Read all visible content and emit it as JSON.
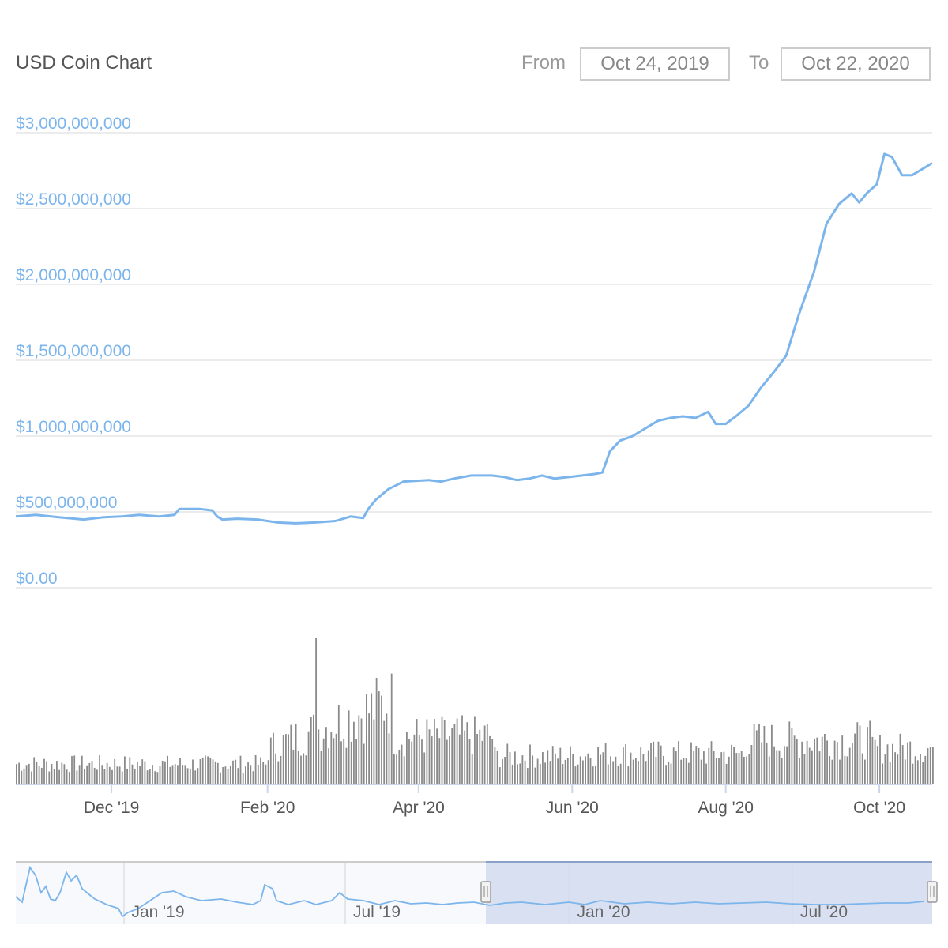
{
  "header": {
    "title": "USD Coin Chart",
    "from_label": "From",
    "from_value": "Oct 24, 2019",
    "to_label": "To",
    "to_value": "Oct 22, 2020"
  },
  "colors": {
    "line": "#7cb5ec",
    "volume": "#8a8a8a",
    "grid": "#e6e6e6",
    "navigator_mask": "#d4dcef"
  },
  "chart_data": {
    "type": "line",
    "title": "USD Coin Chart",
    "y_axis": {
      "min": 0,
      "max": 3000000000,
      "ticks": [
        0,
        500000000,
        1000000000,
        1500000000,
        2000000000,
        2500000000,
        3000000000
      ],
      "tick_labels": [
        "$0.00",
        "$500,000,000",
        "$1,000,000,000",
        "$1,500,000,000",
        "$2,000,000,000",
        "$2,500,000,000",
        "$3,000,000,000"
      ]
    },
    "x_axis": {
      "start": "2019-10-24",
      "end": "2020-10-22",
      "ticks": [
        {
          "date": "2019-12-01",
          "label": "Dec '19"
        },
        {
          "date": "2020-02-01",
          "label": "Feb '20"
        },
        {
          "date": "2020-04-01",
          "label": "Apr '20"
        },
        {
          "date": "2020-06-01",
          "label": "Jun '20"
        },
        {
          "date": "2020-08-01",
          "label": "Aug '20"
        },
        {
          "date": "2020-10-01",
          "label": "Oct '20"
        }
      ]
    },
    "series": [
      {
        "type": "line",
        "x": [
          "2019-10-24",
          "2019-11-01",
          "2019-11-10",
          "2019-11-20",
          "2019-11-28",
          "2019-12-05",
          "2019-12-12",
          "2019-12-20",
          "2019-12-26",
          "2019-12-28",
          "2020-01-05",
          "2020-01-10",
          "2020-01-12",
          "2020-01-14",
          "2020-01-20",
          "2020-01-28",
          "2020-02-05",
          "2020-02-12",
          "2020-02-20",
          "2020-02-28",
          "2020-03-05",
          "2020-03-10",
          "2020-03-12",
          "2020-03-15",
          "2020-03-20",
          "2020-03-26",
          "2020-04-05",
          "2020-04-10",
          "2020-04-15",
          "2020-04-22",
          "2020-04-30",
          "2020-05-05",
          "2020-05-10",
          "2020-05-15",
          "2020-05-20",
          "2020-05-25",
          "2020-05-31",
          "2020-06-05",
          "2020-06-10",
          "2020-06-13",
          "2020-06-16",
          "2020-06-20",
          "2020-06-25",
          "2020-06-30",
          "2020-07-05",
          "2020-07-10",
          "2020-07-15",
          "2020-07-20",
          "2020-07-25",
          "2020-07-28",
          "2020-08-01",
          "2020-08-05",
          "2020-08-10",
          "2020-08-15",
          "2020-08-20",
          "2020-08-25",
          "2020-08-30",
          "2020-09-05",
          "2020-09-10",
          "2020-09-15",
          "2020-09-20",
          "2020-09-23",
          "2020-09-26",
          "2020-09-30",
          "2020-10-03",
          "2020-10-06",
          "2020-10-10",
          "2020-10-14",
          "2020-10-18",
          "2020-10-22"
        ],
        "y": [
          470000000,
          480000000,
          465000000,
          450000000,
          465000000,
          470000000,
          480000000,
          470000000,
          480000000,
          520000000,
          520000000,
          510000000,
          470000000,
          450000000,
          455000000,
          450000000,
          430000000,
          425000000,
          430000000,
          440000000,
          470000000,
          460000000,
          520000000,
          580000000,
          650000000,
          700000000,
          710000000,
          700000000,
          720000000,
          740000000,
          740000000,
          730000000,
          710000000,
          720000000,
          740000000,
          720000000,
          730000000,
          740000000,
          750000000,
          760000000,
          900000000,
          970000000,
          1000000000,
          1050000000,
          1100000000,
          1120000000,
          1130000000,
          1120000000,
          1160000000,
          1080000000,
          1080000000,
          1130000000,
          1200000000,
          1320000000,
          1420000000,
          1530000000,
          1800000000,
          2080000000,
          2400000000,
          2530000000,
          2600000000,
          2540000000,
          2600000000,
          2660000000,
          2860000000,
          2840000000,
          2720000000,
          2720000000,
          2760000000,
          2800000000
        ]
      }
    ],
    "volume_series": {
      "type": "bar",
      "start": "2019-10-24",
      "peak_date": "2020-02-20",
      "peak_relative": 1.0
    },
    "navigator": {
      "labels": [
        "Jan '19",
        "Jul '19",
        "Jan '20",
        "Jul '20"
      ],
      "selection": {
        "from": "2019-10-24",
        "to": "2020-10-22"
      }
    }
  }
}
